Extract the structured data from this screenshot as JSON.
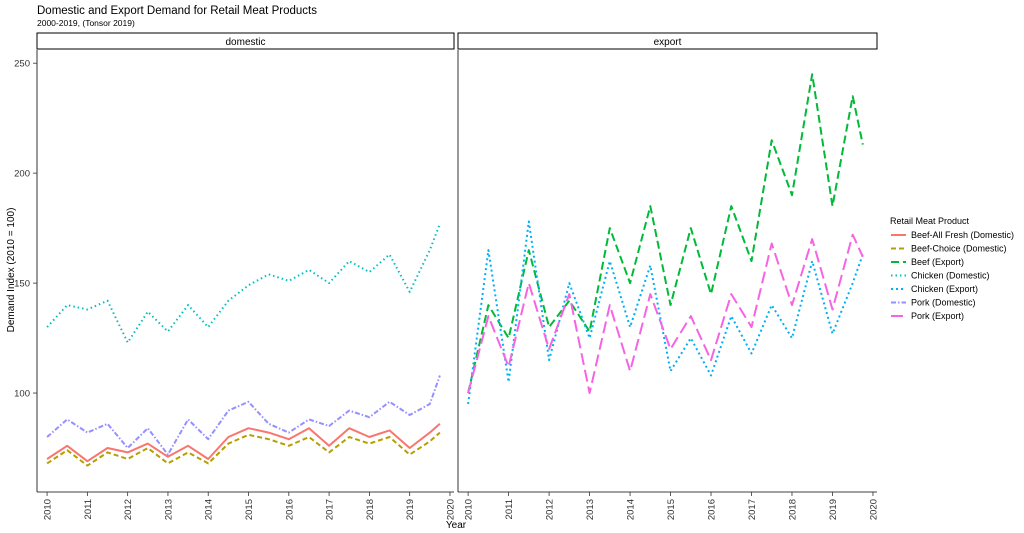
{
  "chart_data": {
    "type": "line",
    "title": "Domestic and Export Demand for Retail Meat Products",
    "subtitle": "2000-2019, (Tonsor 2019)",
    "xlabel": "Year",
    "ylabel": "Demand Index (2010 = 100)",
    "xlim": [
      2009.75,
      2020.1
    ],
    "ylim": [
      55,
      256
    ],
    "xticks": [
      "2010",
      "2011",
      "2012",
      "2013",
      "2014",
      "2015",
      "2016",
      "2017",
      "2018",
      "2019",
      "2020"
    ],
    "yticks": [
      100,
      150,
      200,
      250
    ],
    "facets": [
      {
        "id": "domestic",
        "label": "domestic"
      },
      {
        "id": "export",
        "label": "export"
      }
    ],
    "legend": {
      "title": "Retail Meat Product",
      "position": "right",
      "items": [
        {
          "label": "Beef-All Fresh (Domestic)",
          "color": "#F8766D",
          "dash": "",
          "facet": "domestic"
        },
        {
          "label": "Beef-Choice (Domestic)",
          "color": "#B79F00",
          "dash": "5,3",
          "facet": "domestic"
        },
        {
          "label": "Beef (Export)",
          "color": "#00BA38",
          "dash": "8,4",
          "facet": "export"
        },
        {
          "label": "Chicken (Domestic)",
          "color": "#00BFC4",
          "dash": "1.5,3",
          "facet": "domestic"
        },
        {
          "label": "Chicken (Export)",
          "color": "#00B0F6",
          "dash": "2,3",
          "facet": "export"
        },
        {
          "label": "Pork (Domestic)",
          "color": "#9590FF",
          "dash": "5,2,1.5,2",
          "facet": "domestic"
        },
        {
          "label": "Pork (Export)",
          "color": "#F564E3",
          "dash": "12,5",
          "facet": "export"
        }
      ]
    },
    "series": [
      {
        "name": "Beef-All Fresh (Domestic)",
        "facet": "domestic",
        "color": "#F8766D",
        "dash": "",
        "x": [
          2010,
          2010.5,
          2011,
          2011.5,
          2012,
          2012.5,
          2013,
          2013.5,
          2014,
          2014.5,
          2015,
          2015.5,
          2016,
          2016.5,
          2017,
          2017.5,
          2018,
          2018.5,
          2019,
          2019.5,
          2019.75
        ],
        "y": [
          70,
          76,
          69,
          75,
          73,
          77,
          71,
          76,
          70,
          80,
          84,
          82,
          79,
          84,
          76,
          84,
          80,
          83,
          75,
          82,
          86
        ]
      },
      {
        "name": "Beef-Choice (Domestic)",
        "facet": "domestic",
        "color": "#B79F00",
        "dash": "5,3",
        "x": [
          2010,
          2010.5,
          2011,
          2011.5,
          2012,
          2012.5,
          2013,
          2013.5,
          2014,
          2014.5,
          2015,
          2015.5,
          2016,
          2016.5,
          2017,
          2017.5,
          2018,
          2018.5,
          2019,
          2019.5,
          2019.75
        ],
        "y": [
          68,
          74,
          67,
          73,
          70,
          75,
          68,
          73,
          68,
          77,
          81,
          79,
          76,
          80,
          73,
          80,
          77,
          80,
          72,
          78,
          82
        ]
      },
      {
        "name": "Chicken (Domestic)",
        "facet": "domestic",
        "color": "#00BFC4",
        "dash": "1.5,3",
        "x": [
          2010,
          2010.5,
          2011,
          2011.5,
          2012,
          2012.5,
          2013,
          2013.5,
          2014,
          2014.5,
          2015,
          2015.5,
          2016,
          2016.5,
          2017,
          2017.5,
          2018,
          2018.5,
          2019,
          2019.5,
          2019.75
        ],
        "y": [
          130,
          140,
          138,
          142,
          123,
          137,
          128,
          140,
          130,
          142,
          149,
          154,
          151,
          156,
          150,
          160,
          155,
          163,
          146,
          165,
          177
        ]
      },
      {
        "name": "Pork (Domestic)",
        "facet": "domestic",
        "color": "#9590FF",
        "dash": "5,2,1.5,2",
        "x": [
          2010,
          2010.5,
          2011,
          2011.5,
          2012,
          2012.5,
          2013,
          2013.5,
          2014,
          2014.5,
          2015,
          2015.5,
          2016,
          2016.5,
          2017,
          2017.5,
          2018,
          2018.5,
          2019,
          2019.5,
          2019.75
        ],
        "y": [
          80,
          88,
          82,
          86,
          75,
          84,
          72,
          88,
          79,
          92,
          96,
          86,
          82,
          88,
          85,
          92,
          89,
          96,
          90,
          95,
          108
        ]
      },
      {
        "name": "Beef (Export)",
        "facet": "export",
        "color": "#00BA38",
        "dash": "8,4",
        "x": [
          2010,
          2010.5,
          2011,
          2011.5,
          2012,
          2012.5,
          2013,
          2013.5,
          2014,
          2014.5,
          2015,
          2015.5,
          2016,
          2016.5,
          2017,
          2017.5,
          2018,
          2018.5,
          2019,
          2019.5,
          2019.75
        ],
        "y": [
          100,
          140,
          125,
          165,
          130,
          142,
          128,
          175,
          150,
          185,
          140,
          175,
          145,
          185,
          160,
          215,
          190,
          245,
          185,
          235,
          213
        ]
      },
      {
        "name": "Chicken (Export)",
        "facet": "export",
        "color": "#00B0F6",
        "dash": "2,3",
        "x": [
          2010,
          2010.5,
          2011,
          2011.5,
          2012,
          2012.5,
          2013,
          2013.5,
          2014,
          2014.5,
          2015,
          2015.5,
          2016,
          2016.5,
          2017,
          2017.5,
          2018,
          2018.5,
          2019,
          2019.5,
          2019.75
        ],
        "y": [
          95,
          165,
          105,
          178,
          115,
          150,
          125,
          160,
          130,
          158,
          110,
          125,
          108,
          135,
          118,
          140,
          125,
          160,
          127,
          150,
          163
        ]
      },
      {
        "name": "Pork (Export)",
        "facet": "export",
        "color": "#F564E3",
        "dash": "12,5",
        "x": [
          2010,
          2010.5,
          2011,
          2011.5,
          2012,
          2012.5,
          2013,
          2013.5,
          2014,
          2014.5,
          2015,
          2015.5,
          2016,
          2016.5,
          2017,
          2017.5,
          2018,
          2018.5,
          2019,
          2019.5,
          2019.75
        ],
        "y": [
          100,
          135,
          112,
          150,
          120,
          145,
          100,
          140,
          110,
          145,
          120,
          135,
          115,
          145,
          130,
          168,
          140,
          170,
          138,
          172,
          162
        ]
      }
    ]
  }
}
